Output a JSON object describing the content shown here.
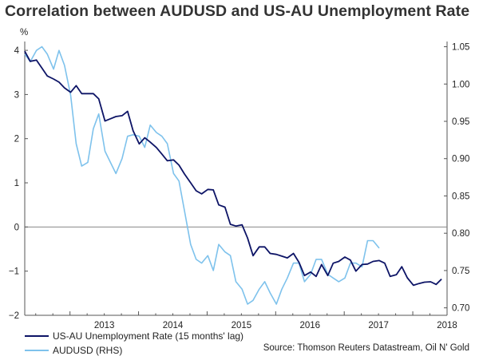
{
  "title": "Correlation between AUDUSD and US-AU Unemployment Rate",
  "source": "Source: Thomson Reuters Datastream, Oil N' Gold",
  "colors": {
    "series1": "#0d1466",
    "series2": "#7ec2ec",
    "zero_line": "#888888",
    "axis": "#555555"
  },
  "chart_data": {
    "type": "line",
    "x_ticks": [
      "2013",
      "2014",
      "2015",
      "2016",
      "2017",
      "2018"
    ],
    "y_left": {
      "label": "%",
      "ticks": [
        "4",
        "3",
        "2",
        "1",
        "0",
        "−1",
        "−2"
      ],
      "range": [
        -2,
        4.2
      ]
    },
    "y_right": {
      "ticks": [
        "1.05",
        "1.00",
        "0.95",
        "0.90",
        "0.85",
        "0.80",
        "0.75",
        "0.70"
      ],
      "range": [
        0.69,
        1.057
      ]
    },
    "grid": false,
    "legend_position": "bottom-left",
    "series": [
      {
        "name": "US-AU Unemployment Rate (15 months' lag)",
        "axis": "left",
        "points": [
          [
            2012.34,
            3.98
          ],
          [
            2012.42,
            3.75
          ],
          [
            2012.51,
            3.78
          ],
          [
            2012.59,
            3.6
          ],
          [
            2012.67,
            3.42
          ],
          [
            2012.76,
            3.35
          ],
          [
            2012.84,
            3.28
          ],
          [
            2012.92,
            3.15
          ],
          [
            2013.01,
            3.05
          ],
          [
            2013.09,
            3.2
          ],
          [
            2013.17,
            3.02
          ],
          [
            2013.26,
            3.02
          ],
          [
            2013.34,
            3.02
          ],
          [
            2013.42,
            2.9
          ],
          [
            2013.51,
            2.4
          ],
          [
            2013.59,
            2.45
          ],
          [
            2013.67,
            2.5
          ],
          [
            2013.76,
            2.52
          ],
          [
            2013.84,
            2.62
          ],
          [
            2013.92,
            2.18
          ],
          [
            2014.01,
            1.88
          ],
          [
            2014.09,
            2.02
          ],
          [
            2014.17,
            1.92
          ],
          [
            2014.26,
            1.8
          ],
          [
            2014.34,
            1.65
          ],
          [
            2014.42,
            1.5
          ],
          [
            2014.51,
            1.52
          ],
          [
            2014.59,
            1.4
          ],
          [
            2014.67,
            1.2
          ],
          [
            2014.76,
            1.0
          ],
          [
            2014.84,
            0.82
          ],
          [
            2014.92,
            0.75
          ],
          [
            2015.01,
            0.85
          ],
          [
            2015.09,
            0.84
          ],
          [
            2015.17,
            0.5
          ],
          [
            2015.26,
            0.45
          ],
          [
            2015.34,
            0.06
          ],
          [
            2015.42,
            0.02
          ],
          [
            2015.51,
            0.05
          ],
          [
            2015.59,
            -0.25
          ],
          [
            2015.67,
            -0.65
          ],
          [
            2015.76,
            -0.45
          ],
          [
            2015.84,
            -0.45
          ],
          [
            2015.92,
            -0.6
          ],
          [
            2016.01,
            -0.62
          ],
          [
            2016.09,
            -0.66
          ],
          [
            2016.17,
            -0.7
          ],
          [
            2016.26,
            -0.6
          ],
          [
            2016.34,
            -0.8
          ],
          [
            2016.42,
            -1.1
          ],
          [
            2016.51,
            -1.02
          ],
          [
            2016.59,
            -1.12
          ],
          [
            2016.67,
            -0.85
          ],
          [
            2016.76,
            -1.1
          ],
          [
            2016.84,
            -0.82
          ],
          [
            2016.92,
            -0.78
          ],
          [
            2017.01,
            -0.68
          ],
          [
            2017.09,
            -0.75
          ],
          [
            2017.17,
            -1.0
          ],
          [
            2017.26,
            -0.85
          ],
          [
            2017.34,
            -0.84
          ],
          [
            2017.42,
            -0.78
          ],
          [
            2017.51,
            -0.76
          ],
          [
            2017.59,
            -0.82
          ],
          [
            2017.67,
            -1.12
          ],
          [
            2017.76,
            -1.08
          ],
          [
            2017.84,
            -0.9
          ],
          [
            2017.92,
            -1.15
          ],
          [
            2018.01,
            -1.32
          ],
          [
            2018.09,
            -1.28
          ],
          [
            2018.17,
            -1.25
          ],
          [
            2018.26,
            -1.24
          ],
          [
            2018.34,
            -1.3
          ],
          [
            2018.42,
            -1.18
          ]
        ]
      },
      {
        "name": "AUDUSD (RHS)",
        "axis": "right",
        "points": [
          [
            2012.34,
            1.04
          ],
          [
            2012.42,
            1.03
          ],
          [
            2012.51,
            1.045
          ],
          [
            2012.59,
            1.05
          ],
          [
            2012.67,
            1.04
          ],
          [
            2012.76,
            1.02
          ],
          [
            2012.84,
            1.045
          ],
          [
            2012.92,
            1.025
          ],
          [
            2013.01,
            0.985
          ],
          [
            2013.09,
            0.92
          ],
          [
            2013.17,
            0.89
          ],
          [
            2013.26,
            0.895
          ],
          [
            2013.34,
            0.94
          ],
          [
            2013.42,
            0.96
          ],
          [
            2013.51,
            0.91
          ],
          [
            2013.59,
            0.895
          ],
          [
            2013.67,
            0.88
          ],
          [
            2013.76,
            0.9
          ],
          [
            2013.84,
            0.93
          ],
          [
            2013.92,
            0.932
          ],
          [
            2014.01,
            0.93
          ],
          [
            2014.09,
            0.915
          ],
          [
            2014.17,
            0.945
          ],
          [
            2014.26,
            0.935
          ],
          [
            2014.34,
            0.93
          ],
          [
            2014.42,
            0.92
          ],
          [
            2014.51,
            0.88
          ],
          [
            2014.59,
            0.87
          ],
          [
            2014.67,
            0.83
          ],
          [
            2014.76,
            0.785
          ],
          [
            2014.84,
            0.765
          ],
          [
            2014.92,
            0.76
          ],
          [
            2015.01,
            0.77
          ],
          [
            2015.09,
            0.75
          ],
          [
            2015.17,
            0.785
          ],
          [
            2015.26,
            0.775
          ],
          [
            2015.34,
            0.77
          ],
          [
            2015.42,
            0.735
          ],
          [
            2015.51,
            0.725
          ],
          [
            2015.59,
            0.705
          ],
          [
            2015.67,
            0.71
          ],
          [
            2015.76,
            0.725
          ],
          [
            2015.84,
            0.735
          ],
          [
            2015.92,
            0.72
          ],
          [
            2016.01,
            0.705
          ],
          [
            2016.09,
            0.725
          ],
          [
            2016.17,
            0.74
          ],
          [
            2016.26,
            0.76
          ],
          [
            2016.34,
            0.76
          ],
          [
            2016.42,
            0.735
          ],
          [
            2016.51,
            0.745
          ],
          [
            2016.59,
            0.765
          ],
          [
            2016.67,
            0.765
          ],
          [
            2016.76,
            0.745
          ],
          [
            2016.84,
            0.74
          ],
          [
            2016.92,
            0.735
          ],
          [
            2017.01,
            0.74
          ],
          [
            2017.09,
            0.76
          ],
          [
            2017.17,
            0.76
          ],
          [
            2017.26,
            0.755
          ],
          [
            2017.34,
            0.79
          ],
          [
            2017.42,
            0.79
          ],
          [
            2017.51,
            0.78
          ]
        ]
      }
    ]
  }
}
